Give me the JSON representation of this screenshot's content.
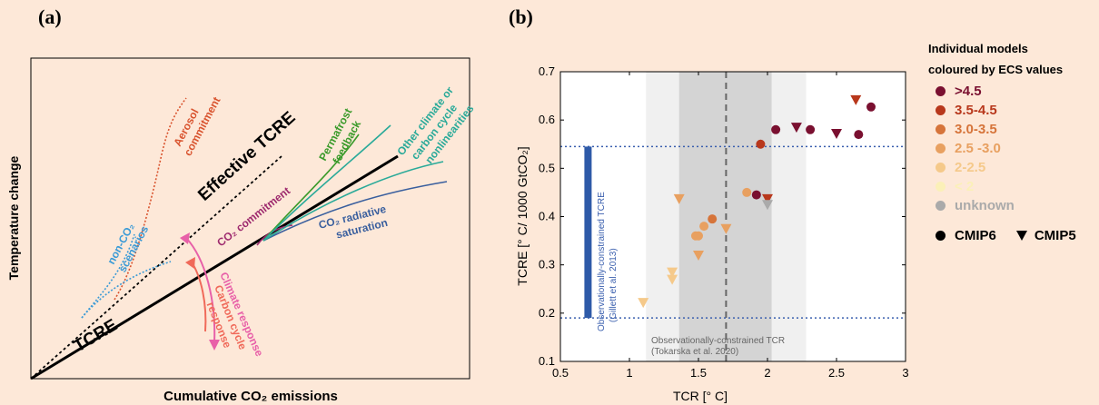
{
  "panel_a": {
    "label": "(a)",
    "xlabel": "Cumulative CO₂ emissions",
    "ylabel": "Temperature change",
    "annotations": {
      "tcre": "TCRE",
      "effective_tcre": "Effective TCRE",
      "aerosol_1": "Aerosol",
      "aerosol_2": "commitment",
      "co2_commitment": "CO₂ commitment",
      "permafrost_1": "Permafrost",
      "permafrost_2": "feedback",
      "other_1": "Other climate or",
      "other_2": "carbon cycle",
      "other_3": "nonlinearities",
      "radiative_1": "CO₂ radiative",
      "radiative_2": "saturation",
      "nonco2_1": "non-CO₂",
      "nonco2_2": "scenarios",
      "climate_resp_1": "Climate response",
      "carbon_resp_1": "Carbon cycle",
      "carbon_resp_2": "response"
    },
    "colors": {
      "aerosol": "#d9542f",
      "permafrost": "#3a9a2a",
      "other": "#2aaa99",
      "radiative": "#3a5f9e",
      "co2_commitment": "#9e2a6e",
      "nonco2": "#3a9ad6",
      "climate_response": "#e860a8",
      "carbon_response": "#f06a5a"
    }
  },
  "chart_data": {
    "type": "scatter",
    "label": "(b)",
    "xlabel": "TCR [° C]",
    "ylabel": "TCRE [° C/ 1000 GtCO₂]",
    "xlim": [
      0.5,
      3
    ],
    "ylim": [
      0.1,
      0.7
    ],
    "xticks": [
      "0.5",
      "1",
      "1.5",
      "2",
      "2.5",
      "3"
    ],
    "yticks": [
      "0.1",
      "0.2",
      "0.3",
      "0.4",
      "0.5",
      "0.6",
      "0.7"
    ],
    "tcre_obs_range": [
      0.19,
      0.545
    ],
    "tcr_obs_light": [
      1.12,
      2.28
    ],
    "tcr_obs_dark": [
      1.36,
      2.03
    ],
    "tcr_median": 1.7,
    "tcre_obs_label_1": "Observationally-constrained TCRE",
    "tcre_obs_label_2": "(Gillett et al. 2013)",
    "tcr_obs_label_1": "Observationally-constrained TCR",
    "tcr_obs_label_2": "(Tokarska et al. 2020)",
    "legend": {
      "title_1": "Individual models",
      "title_2": "coloured by ECS values",
      "classes": [
        {
          "name": ">4.5",
          "color": "#7a1030"
        },
        {
          "name": "3.5-4.5",
          "color": "#b8381c"
        },
        {
          "name": "3.0-3.5",
          "color": "#d6743a"
        },
        {
          "name": "2.5 -3.0",
          "color": "#e8a060"
        },
        {
          "name": "2-2.5",
          "color": "#f5c98a"
        },
        {
          "name": "< 2",
          "color": "#fbf0b8"
        },
        {
          "name": "unknown",
          "color": "#aaaaaa"
        }
      ],
      "cmip6": "CMIP6",
      "cmip5": "CMIP5"
    },
    "cmip6": [
      {
        "x": 2.06,
        "y": 0.58,
        "c": 0
      },
      {
        "x": 2.31,
        "y": 0.58,
        "c": 0
      },
      {
        "x": 2.66,
        "y": 0.57,
        "c": 0
      },
      {
        "x": 2.75,
        "y": 0.627,
        "c": 0
      },
      {
        "x": 1.92,
        "y": 0.445,
        "c": 0
      },
      {
        "x": 1.95,
        "y": 0.55,
        "c": 1
      },
      {
        "x": 1.6,
        "y": 0.395,
        "c": 2
      },
      {
        "x": 1.85,
        "y": 0.45,
        "c": 3
      },
      {
        "x": 1.54,
        "y": 0.38,
        "c": 3
      },
      {
        "x": 1.48,
        "y": 0.36,
        "c": 3
      },
      {
        "x": 1.5,
        "y": 0.36,
        "c": 3
      }
    ],
    "cmip5": [
      {
        "x": 2.21,
        "y": 0.585,
        "c": 0
      },
      {
        "x": 2.5,
        "y": 0.572,
        "c": 0
      },
      {
        "x": 2.64,
        "y": 0.642,
        "c": 1
      },
      {
        "x": 2.0,
        "y": 0.437,
        "c": 1
      },
      {
        "x": 2.0,
        "y": 0.425,
        "c": 6
      },
      {
        "x": 1.5,
        "y": 0.32,
        "c": 3
      },
      {
        "x": 1.7,
        "y": 0.375,
        "c": 3
      },
      {
        "x": 1.36,
        "y": 0.437,
        "c": 3
      },
      {
        "x": 1.31,
        "y": 0.285,
        "c": 4
      },
      {
        "x": 1.31,
        "y": 0.27,
        "c": 4
      },
      {
        "x": 1.1,
        "y": 0.222,
        "c": 4
      }
    ]
  }
}
